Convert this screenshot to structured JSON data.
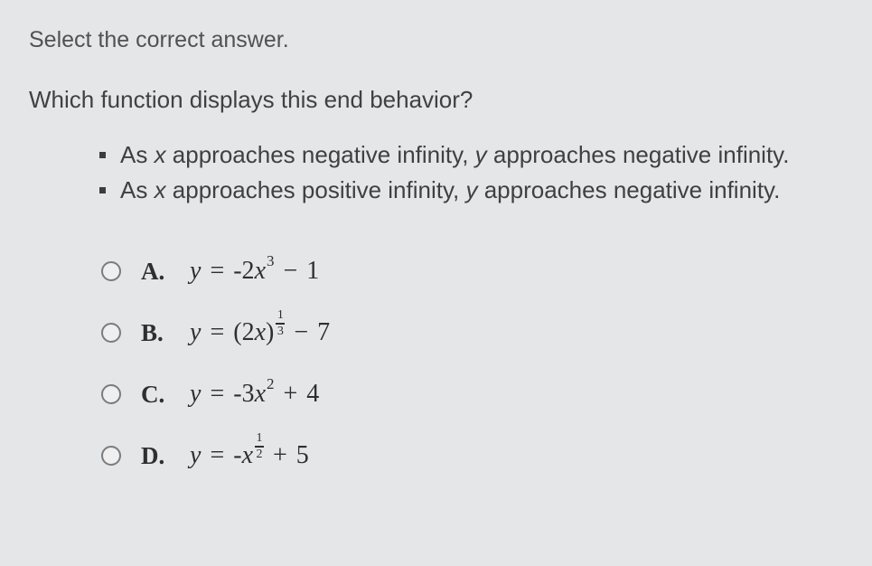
{
  "instruction": "Select the correct answer.",
  "question": "Which function displays this end behavior?",
  "bullets": [
    {
      "pre": "As ",
      "var1": "x",
      "mid": " approaches negative infinity, ",
      "var2": "y",
      "post": " approaches negative infinity."
    },
    {
      "pre": "As ",
      "var1": "x",
      "mid": " approaches positive infinity, ",
      "var2": "y",
      "post": " approaches negative infinity."
    }
  ],
  "choices": {
    "a": {
      "letter": "A.",
      "y": "y",
      "eq": "=",
      "coef": "-2",
      "x": "x",
      "exp": "3",
      "op": "−",
      "k": "1"
    },
    "b": {
      "letter": "B.",
      "y": "y",
      "eq": "=",
      "lpar": "(",
      "coef": "2",
      "x": "x",
      "rpar": ")",
      "frac_n": "1",
      "frac_d": "3",
      "op": "−",
      "k": "7"
    },
    "c": {
      "letter": "C.",
      "y": "y",
      "eq": "=",
      "coef": "-3",
      "x": "x",
      "exp": "2",
      "op": "+",
      "k": "4"
    },
    "d": {
      "letter": "D.",
      "y": "y",
      "eq": "=",
      "coef": "-",
      "x": "x",
      "frac_n": "1",
      "frac_d": "2",
      "op": "+",
      "k": "5"
    }
  },
  "colors": {
    "page_bg": "#e5e6e7",
    "text": "#3a3c3e",
    "radio_border": "#7a7c7e"
  },
  "fonts": {
    "ui": "Arial",
    "math": "Georgia",
    "instruction_size_pt": 19,
    "question_size_pt": 20,
    "math_size_pt": 21
  }
}
